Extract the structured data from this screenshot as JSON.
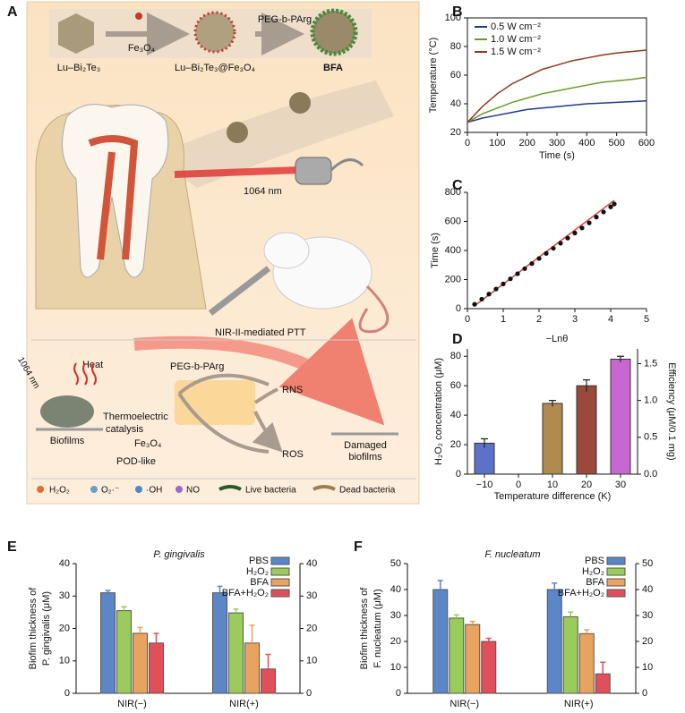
{
  "schematic": {
    "panel_label": "A",
    "synthesis": [
      "Lu–Bi₂Te₃",
      "Fe₃O₄",
      "Lu–Bi₂Te₃@Fe₃O₄",
      "PEG-b-PArg",
      "BFA"
    ],
    "laser": "1064 nm",
    "ptt": "NIR-II-mediated PTT",
    "mechanism": {
      "laser": "1064 nm",
      "heat": "Heat",
      "polymer": "PEG-b-PArg",
      "catalysis": [
        "Thermoelectric",
        "catalysis"
      ],
      "biofilms": "Biofilms",
      "fe3o4": "Fe₃O₄",
      "pod": "POD-like",
      "rns": "RNS",
      "ros": "ROS",
      "damaged": [
        "Damaged",
        "biofilms"
      ]
    },
    "legend": [
      "H₂O₂",
      "O₂·⁻",
      "·OH",
      "NO",
      "Live bacteria",
      "Dead bacteria"
    ]
  },
  "chart_data": [
    {
      "type": "line",
      "panel_label": "B",
      "xlabel": "Time (s)",
      "ylabel": "Temperature (°C)",
      "xlim": [
        0,
        600
      ],
      "xticks": [
        0,
        100,
        200,
        300,
        400,
        500,
        600
      ],
      "ylim": [
        20,
        100
      ],
      "yticks": [
        20,
        40,
        60,
        80,
        100
      ],
      "legend": "upper left",
      "x": [
        0,
        50,
        100,
        150,
        200,
        250,
        300,
        350,
        400,
        450,
        500,
        550,
        600
      ],
      "series": [
        {
          "name": "0.5 W cm⁻²",
          "color": "#1f3a93",
          "values": [
            27,
            30,
            32,
            34,
            36,
            37,
            38,
            39,
            40,
            40.5,
            41,
            41.5,
            42
          ]
        },
        {
          "name": "1.0 W cm⁻²",
          "color": "#6a9a2a",
          "values": [
            27,
            33,
            37,
            41,
            44,
            47,
            49,
            51,
            53,
            55,
            56,
            57,
            58.5
          ]
        },
        {
          "name": "1.5 W cm⁻²",
          "color": "#8b3a1a",
          "values": [
            27,
            38,
            47,
            54,
            59,
            64,
            67,
            70,
            72,
            74,
            75.5,
            76.5,
            77.5
          ]
        }
      ]
    },
    {
      "type": "scatter",
      "panel_label": "C",
      "xlabel": "−Lnθ",
      "ylabel": "Time (s)",
      "xlim": [
        0,
        5
      ],
      "xticks": [
        0,
        1,
        2,
        3,
        4,
        5
      ],
      "ylim": [
        0,
        800
      ],
      "yticks": [
        0,
        200,
        400,
        600,
        800
      ],
      "color": "#111111",
      "x": [
        0.2,
        0.4,
        0.6,
        0.8,
        1.0,
        1.2,
        1.4,
        1.6,
        1.8,
        2.0,
        2.2,
        2.4,
        2.6,
        2.8,
        3.0,
        3.2,
        3.4,
        3.6,
        3.8,
        4.0,
        4.1
      ],
      "values": [
        30,
        65,
        100,
        135,
        170,
        205,
        240,
        275,
        310,
        345,
        380,
        415,
        450,
        485,
        520,
        555,
        590,
        630,
        665,
        700,
        720
      ],
      "fit_line": {
        "color": "#e0403a",
        "x": [
          0.2,
          4.1
        ],
        "values": [
          20,
          745
        ]
      }
    },
    {
      "type": "bar",
      "panel_label": "D",
      "xlabel": "Temperature difference (K)",
      "ylabel": "H₂O₂ concentration (μM)",
      "y2label": "Efficiency (μM/0.1 mg)",
      "categories": [
        "−10",
        "0",
        "10",
        "20",
        "30"
      ],
      "values": [
        21,
        null,
        48,
        60,
        78
      ],
      "errors": [
        3,
        null,
        2,
        4,
        2
      ],
      "colors": [
        "#5b72c8",
        "#888888",
        "#b08a4e",
        "#9a4a3a",
        "#c768d0"
      ],
      "ylim": [
        0,
        85
      ],
      "yticks": [
        0,
        20,
        40,
        60,
        80
      ],
      "y2lim": [
        0,
        1.7
      ],
      "y2ticks": [
        {
          "value": 0,
          "label": "0.0"
        },
        0.5,
        {
          "value": 1,
          "label": "1.0"
        },
        1.5
      ]
    },
    {
      "type": "grouped_bar",
      "panel_label": "E",
      "title": "P. gingivalis",
      "ylabel": [
        "Biofim thickness of",
        "P. gingivalis (μM)"
      ],
      "categories": [
        "NIR(−)",
        "NIR(+)"
      ],
      "ylim": [
        0,
        40
      ],
      "yticks": [
        0,
        10,
        20,
        30,
        40
      ],
      "y2lim": [
        0,
        40
      ],
      "y2ticks": [
        0,
        10,
        20,
        30,
        40
      ],
      "series": [
        {
          "name": "PBS",
          "color": "#5b86c8",
          "values": [
            31,
            31
          ],
          "errors": [
            0.7,
            2
          ]
        },
        {
          "name": "H₂O₂",
          "color": "#9acb5c",
          "values": [
            25.5,
            24.8
          ],
          "errors": [
            1.2,
            1.2
          ]
        },
        {
          "name": "BFA",
          "color": "#e8a45e",
          "values": [
            18.5,
            15.5
          ],
          "errors": [
            1.8,
            5.5
          ]
        },
        {
          "name": "BFA+H₂O₂",
          "color": "#e0505a",
          "values": [
            15.5,
            7.5
          ],
          "errors": [
            3,
            4.5
          ]
        }
      ]
    },
    {
      "type": "grouped_bar",
      "panel_label": "F",
      "title": "F. nucleatum",
      "ylabel": [
        "Biofim thickness of",
        "F. nucleatum (μM)"
      ],
      "categories": [
        "NIR(−)",
        "NIR(+)"
      ],
      "ylim": [
        0,
        50
      ],
      "yticks": [
        0,
        10,
        20,
        30,
        40,
        50
      ],
      "y2lim": [
        0,
        50
      ],
      "y2ticks": [
        0,
        10,
        20,
        30,
        40,
        50
      ],
      "series": [
        {
          "name": "PBS",
          "color": "#5b86c8",
          "values": [
            40,
            40
          ],
          "errors": [
            3.5,
            2.5
          ]
        },
        {
          "name": "H₂O₂",
          "color": "#9acb5c",
          "values": [
            29,
            29.5
          ],
          "errors": [
            1.2,
            1.8
          ]
        },
        {
          "name": "BFA",
          "color": "#e8a45e",
          "values": [
            26.5,
            23
          ],
          "errors": [
            1.2,
            1.5
          ]
        },
        {
          "name": "BFA+H₂O₂",
          "color": "#e0505a",
          "values": [
            20,
            7.5
          ],
          "errors": [
            1.2,
            4.5
          ]
        }
      ]
    }
  ]
}
